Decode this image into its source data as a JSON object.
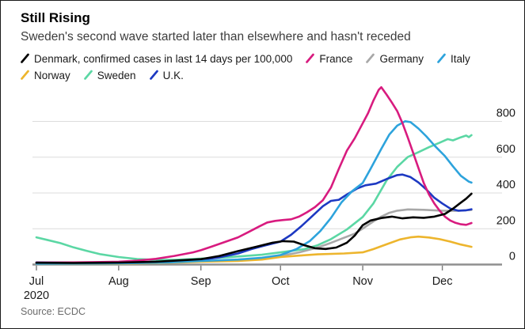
{
  "header": {
    "title": "Still Rising",
    "subtitle": "Sweden's second wave started later than elsewhere and hasn't receded"
  },
  "source": "Source: ECDC",
  "legend": {
    "rows": [
      [
        {
          "id": "denmark",
          "label": "Denmark, confirmed cases in last 14 days per 100,000",
          "color": "#000000"
        },
        {
          "id": "france",
          "label": "France",
          "color": "#d81b7f"
        },
        {
          "id": "germany",
          "label": "Germany",
          "color": "#a8a8a8"
        },
        {
          "id": "italy",
          "label": "Italy",
          "color": "#2da3dc"
        }
      ],
      [
        {
          "id": "norway",
          "label": "Norway",
          "color": "#edb52d"
        },
        {
          "id": "sweden",
          "label": "Sweden",
          "color": "#5bd7a4"
        },
        {
          "id": "uk",
          "label": "U.K.",
          "color": "#1d39c2"
        }
      ]
    ]
  },
  "chart_data": {
    "type": "line",
    "title": "Still Rising",
    "subtitle": "Sweden's second wave started later than elsewhere and hasn't receded",
    "ylabel": "confirmed cases in last 14 days per 100,000",
    "x_unit": "days since Jul 1, 2020",
    "x_ticks": [
      "Jul",
      "Aug",
      "Sep",
      "Oct",
      "Nov",
      "Dec"
    ],
    "x_tick_days": [
      0,
      31,
      62,
      92,
      123,
      153
    ],
    "x_year_label": "2020",
    "y_ticks": [
      0,
      200,
      400,
      600,
      800
    ],
    "ylim": [
      0,
      1000
    ],
    "grid": "horizontal",
    "legend_position": "top",
    "series": [
      {
        "name": "Germany",
        "id": "germany",
        "color": "#a8a8a8",
        "points": [
          [
            0,
            6
          ],
          [
            31,
            8
          ],
          [
            45,
            14
          ],
          [
            62,
            18
          ],
          [
            76,
            23
          ],
          [
            85,
            32
          ],
          [
            92,
            48
          ],
          [
            99,
            68
          ],
          [
            106,
            95
          ],
          [
            111,
            121
          ],
          [
            116,
            150
          ],
          [
            120,
            173
          ],
          [
            123,
            201
          ],
          [
            127,
            241
          ],
          [
            130,
            268
          ],
          [
            133,
            289
          ],
          [
            136,
            301
          ],
          [
            140,
            308
          ],
          [
            146,
            306
          ],
          [
            153,
            301
          ],
          [
            158,
            300
          ],
          [
            164,
            305
          ]
        ]
      },
      {
        "name": "Norway",
        "id": "norway",
        "color": "#edb52d",
        "points": [
          [
            0,
            5
          ],
          [
            31,
            4
          ],
          [
            50,
            10
          ],
          [
            62,
            16
          ],
          [
            76,
            20
          ],
          [
            85,
            28
          ],
          [
            92,
            42
          ],
          [
            99,
            50
          ],
          [
            106,
            57
          ],
          [
            116,
            62
          ],
          [
            123,
            68
          ],
          [
            127,
            86
          ],
          [
            132,
            113
          ],
          [
            137,
            140
          ],
          [
            141,
            152
          ],
          [
            144,
            156
          ],
          [
            148,
            151
          ],
          [
            152,
            142
          ],
          [
            156,
            128
          ],
          [
            160,
            112
          ],
          [
            163,
            102
          ],
          [
            164,
            99
          ]
        ]
      },
      {
        "name": "Sweden",
        "id": "sweden",
        "color": "#5bd7a4",
        "points": [
          [
            0,
            152
          ],
          [
            4,
            138
          ],
          [
            9,
            120
          ],
          [
            14,
            96
          ],
          [
            19,
            76
          ],
          [
            24,
            58
          ],
          [
            31,
            42
          ],
          [
            38,
            31
          ],
          [
            45,
            26
          ],
          [
            52,
            26
          ],
          [
            62,
            33
          ],
          [
            70,
            39
          ],
          [
            76,
            45
          ],
          [
            85,
            55
          ],
          [
            92,
            68
          ],
          [
            101,
            86
          ],
          [
            106,
            108
          ],
          [
            111,
            142
          ],
          [
            117,
            196
          ],
          [
            123,
            266
          ],
          [
            127,
            341
          ],
          [
            132,
            470
          ],
          [
            136,
            546
          ],
          [
            140,
            601
          ],
          [
            144,
            628
          ],
          [
            148,
            656
          ],
          [
            152,
            681
          ],
          [
            155,
            701
          ],
          [
            157,
            694
          ],
          [
            160,
            711
          ],
          [
            162,
            721
          ],
          [
            163,
            712
          ],
          [
            164,
            723
          ]
        ]
      },
      {
        "name": "U.K.",
        "id": "uk",
        "color": "#1d39c2",
        "points": [
          [
            0,
            12
          ],
          [
            14,
            11
          ],
          [
            31,
            12
          ],
          [
            50,
            16
          ],
          [
            62,
            26
          ],
          [
            69,
            40
          ],
          [
            76,
            62
          ],
          [
            81,
            86
          ],
          [
            86,
            106
          ],
          [
            92,
            128
          ],
          [
            96,
            166
          ],
          [
            100,
            216
          ],
          [
            104,
            271
          ],
          [
            108,
            326
          ],
          [
            111,
            356
          ],
          [
            114,
            362
          ],
          [
            117,
            391
          ],
          [
            121,
            426
          ],
          [
            124,
            443
          ],
          [
            128,
            452
          ],
          [
            132,
            478
          ],
          [
            136,
            500
          ],
          [
            138,
            503
          ],
          [
            141,
            489
          ],
          [
            144,
            459
          ],
          [
            147,
            419
          ],
          [
            150,
            373
          ],
          [
            153,
            341
          ],
          [
            156,
            313
          ],
          [
            159,
            301
          ],
          [
            162,
            303
          ],
          [
            164,
            309
          ]
        ]
      },
      {
        "name": "Italy",
        "id": "italy",
        "color": "#2da3dc",
        "points": [
          [
            0,
            5
          ],
          [
            31,
            6
          ],
          [
            50,
            12
          ],
          [
            62,
            20
          ],
          [
            76,
            28
          ],
          [
            85,
            38
          ],
          [
            92,
            53
          ],
          [
            98,
            86
          ],
          [
            103,
            131
          ],
          [
            107,
            187
          ],
          [
            111,
            260
          ],
          [
            115,
            348
          ],
          [
            119,
            410
          ],
          [
            123,
            456
          ],
          [
            126,
            536
          ],
          [
            130,
            646
          ],
          [
            133,
            726
          ],
          [
            136,
            776
          ],
          [
            139,
            801
          ],
          [
            141,
            796
          ],
          [
            144,
            760
          ],
          [
            147,
            716
          ],
          [
            150,
            666
          ],
          [
            154,
            606
          ],
          [
            157,
            549
          ],
          [
            160,
            496
          ],
          [
            163,
            463
          ],
          [
            164,
            458
          ]
        ]
      },
      {
        "name": "France",
        "id": "france",
        "color": "#d81b7f",
        "points": [
          [
            0,
            11
          ],
          [
            14,
            12
          ],
          [
            31,
            16
          ],
          [
            38,
            22
          ],
          [
            45,
            32
          ],
          [
            52,
            48
          ],
          [
            59,
            68
          ],
          [
            62,
            80
          ],
          [
            66,
            100
          ],
          [
            71,
            126
          ],
          [
            76,
            152
          ],
          [
            80,
            182
          ],
          [
            84,
            213
          ],
          [
            87,
            235
          ],
          [
            90,
            244
          ],
          [
            93,
            249
          ],
          [
            96,
            253
          ],
          [
            99,
            268
          ],
          [
            102,
            292
          ],
          [
            105,
            321
          ],
          [
            108,
            360
          ],
          [
            111,
            430
          ],
          [
            114,
            535
          ],
          [
            117,
            636
          ],
          [
            120,
            706
          ],
          [
            123,
            790
          ],
          [
            125,
            846
          ],
          [
            127,
            916
          ],
          [
            129,
            976
          ],
          [
            130,
            991
          ],
          [
            132,
            950
          ],
          [
            134,
            905
          ],
          [
            136,
            858
          ],
          [
            138,
            790
          ],
          [
            140,
            710
          ],
          [
            142,
            625
          ],
          [
            144,
            540
          ],
          [
            146,
            456
          ],
          [
            148,
            391
          ],
          [
            150,
            341
          ],
          [
            152,
            301
          ],
          [
            154,
            268
          ],
          [
            156,
            246
          ],
          [
            158,
            233
          ],
          [
            160,
            225
          ],
          [
            162,
            222
          ],
          [
            164,
            232
          ]
        ]
      },
      {
        "name": "Denmark",
        "id": "denmark",
        "color": "#000000",
        "points": [
          [
            0,
            10
          ],
          [
            14,
            9
          ],
          [
            31,
            11
          ],
          [
            45,
            16
          ],
          [
            55,
            24
          ],
          [
            62,
            30
          ],
          [
            69,
            48
          ],
          [
            76,
            75
          ],
          [
            83,
            100
          ],
          [
            89,
            122
          ],
          [
            93,
            131
          ],
          [
            97,
            128
          ],
          [
            101,
            108
          ],
          [
            105,
            91
          ],
          [
            109,
            87
          ],
          [
            113,
            95
          ],
          [
            117,
            122
          ],
          [
            120,
            162
          ],
          [
            123,
            220
          ],
          [
            126,
            246
          ],
          [
            130,
            260
          ],
          [
            134,
            268
          ],
          [
            138,
            258
          ],
          [
            142,
            264
          ],
          [
            146,
            261
          ],
          [
            150,
            268
          ],
          [
            154,
            283
          ],
          [
            157,
            312
          ],
          [
            160,
            346
          ],
          [
            162,
            368
          ],
          [
            164,
            396
          ]
        ]
      }
    ]
  }
}
